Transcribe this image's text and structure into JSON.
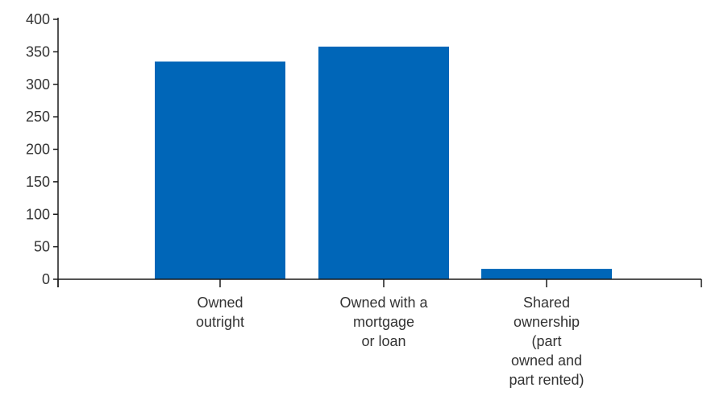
{
  "chart_data": {
    "type": "bar",
    "title": "",
    "xlabel": "",
    "ylabel": "",
    "categories": [
      [
        "Owned",
        "outright"
      ],
      [
        "Owned with a",
        "mortgage",
        "or loan"
      ],
      [
        "Shared",
        "ownership",
        "(part",
        "owned and",
        "part rented)"
      ]
    ],
    "values": [
      335,
      358,
      16
    ],
    "ylim": [
      0,
      400
    ],
    "yticks": [
      0,
      50,
      100,
      150,
      200,
      250,
      300,
      350,
      400
    ],
    "grid": false,
    "legend": "none",
    "colors": {
      "bar": "#0066B8",
      "axis": "#1a1a1a",
      "text": "#333333"
    }
  }
}
